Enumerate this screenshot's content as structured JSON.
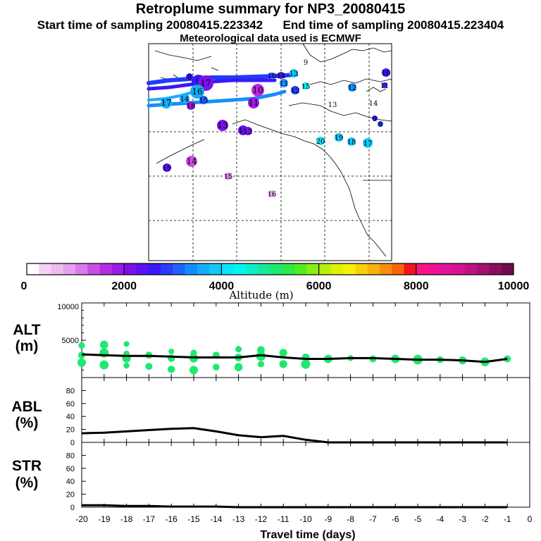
{
  "header": {
    "title": "Retroplume summary for NP3_20080415",
    "start": "Start time of sampling 20080415.223342",
    "end": "End time of sampling 20080415.223404",
    "met": "Meteorological data used is ECMWF"
  },
  "colorbar": {
    "label": "Altitude (m)",
    "ticks": [
      "0",
      "2000",
      "4000",
      "6000",
      "8000",
      "10000"
    ],
    "colors": [
      "#ffffff",
      "#f6d2f6",
      "#eebcf0",
      "#e3a3ec",
      "#d77ce8",
      "#c94ee4",
      "#b82ae4",
      "#9b1ae6",
      "#7c10ea",
      "#5a12ef",
      "#3a18f6",
      "#2a3cfa",
      "#1e62fb",
      "#178cfb",
      "#14acfa",
      "#10c8fa",
      "#0ee2f8",
      "#00f6f0",
      "#10eec8",
      "#18e89c",
      "#1ee870",
      "#2ce848",
      "#52ea20",
      "#88ec12",
      "#b6ee10",
      "#dcf00c",
      "#f8f00a",
      "#f8d00a",
      "#f8b00a",
      "#f88c0c",
      "#f8640c",
      "#f4141c",
      "#f81482",
      "#ee1292",
      "#e2129a",
      "#d2148e",
      "#c0127e",
      "#a4106e",
      "#8a0e60",
      "#6e0c50"
    ]
  },
  "map_labels": [
    {
      "t": "8",
      "c": "#3a18f6"
    },
    {
      "t": "9",
      "c": "#3a18f6"
    },
    {
      "t": "10",
      "c": "#2a3cfa"
    },
    {
      "t": "11",
      "c": "#178cfb"
    },
    {
      "t": "12",
      "c": "#2a3cfa"
    },
    {
      "t": "13",
      "c": "#10c8fa"
    },
    {
      "t": "14",
      "c": "#3a18f6"
    },
    {
      "t": "15",
      "c": "#0ee2f8"
    },
    {
      "t": "9",
      "c": "#3a18f6"
    },
    {
      "t": "8",
      "c": "#2a3cfa"
    },
    {
      "t": "16",
      "c": "#5a12ef"
    },
    {
      "t": "17",
      "c": "#10c8fa"
    },
    {
      "t": "18",
      "c": "#10c8fa"
    },
    {
      "t": "19",
      "c": "#10c8fa"
    },
    {
      "t": "20",
      "c": "#0ee2f8"
    },
    {
      "t": "13",
      "c": "#7c10ea"
    },
    {
      "t": "12",
      "c": "#7c10ea"
    },
    {
      "t": "11",
      "c": "#9b1ae6"
    },
    {
      "t": "10",
      "c": "#b82ae4"
    },
    {
      "t": "14",
      "c": "#c94ee4"
    },
    {
      "t": "15",
      "c": "#d77ce8"
    },
    {
      "t": "16",
      "c": "#e3a3ec"
    },
    {
      "t": "17",
      "c": "#7c10ea"
    },
    {
      "t": "18",
      "c": "#9b1ae6"
    },
    {
      "t": "19",
      "c": "#5a12ef"
    },
    {
      "t": "16",
      "c": "#14acfa"
    },
    {
      "t": "17",
      "c": "#14acfa"
    },
    {
      "t": "14",
      "c": "#14acfa"
    },
    {
      "t": "15",
      "c": "#1e62fb"
    },
    {
      "t": "12",
      "c": "#178cfb"
    },
    {
      "t": "9",
      "c": "#ffffff"
    },
    {
      "t": "10",
      "c": "#3a18f6"
    },
    {
      "t": "11",
      "c": "#3a18f6"
    },
    {
      "t": "14",
      "c": "#ffffff"
    },
    {
      "t": "13",
      "c": "#ffffff"
    }
  ],
  "chart_data": [
    {
      "type": "scatter",
      "panel": "ALT",
      "ylabel_1": "ALT",
      "ylabel_2": "(m)",
      "ylim": [
        0,
        10000
      ],
      "ytick_labels": [
        "10000",
        "5000"
      ],
      "xlim": [
        -20,
        0
      ],
      "median_line": {
        "x": [
          -20,
          -19,
          -18,
          -17,
          -16,
          -15,
          -14,
          -13,
          -12,
          -11,
          -10,
          -9,
          -8,
          -7,
          -6,
          -5,
          -4,
          -3,
          -2,
          -1
        ],
        "y": [
          3100,
          3000,
          2900,
          2900,
          2800,
          2700,
          2700,
          2700,
          3000,
          2700,
          2500,
          2500,
          2600,
          2600,
          2500,
          2400,
          2400,
          2300,
          2100,
          2500
        ]
      },
      "points": [
        {
          "x": -20,
          "y": 3000
        },
        {
          "x": -20,
          "y": 4300
        },
        {
          "x": -20,
          "y": 2000
        },
        {
          "x": -19,
          "y": 4400
        },
        {
          "x": -19,
          "y": 3300
        },
        {
          "x": -19,
          "y": 1700
        },
        {
          "x": -18,
          "y": 4500
        },
        {
          "x": -18,
          "y": 3200
        },
        {
          "x": -18,
          "y": 2600
        },
        {
          "x": -18,
          "y": 1600
        },
        {
          "x": -17,
          "y": 3000
        },
        {
          "x": -17,
          "y": 1500
        },
        {
          "x": -16,
          "y": 3500
        },
        {
          "x": -16,
          "y": 2600
        },
        {
          "x": -16,
          "y": 1100
        },
        {
          "x": -15,
          "y": 3300
        },
        {
          "x": -15,
          "y": 2600
        },
        {
          "x": -15,
          "y": 1000
        },
        {
          "x": -14,
          "y": 3000
        },
        {
          "x": -14,
          "y": 1400
        },
        {
          "x": -13,
          "y": 3800
        },
        {
          "x": -13,
          "y": 2700
        },
        {
          "x": -13,
          "y": 1400
        },
        {
          "x": -12,
          "y": 3700
        },
        {
          "x": -12,
          "y": 2900
        },
        {
          "x": -12,
          "y": 1800
        },
        {
          "x": -11,
          "y": 3300
        },
        {
          "x": -11,
          "y": 1800
        },
        {
          "x": -10,
          "y": 2700
        },
        {
          "x": -10,
          "y": 1800
        },
        {
          "x": -9,
          "y": 2500
        },
        {
          "x": -8,
          "y": 2600
        },
        {
          "x": -7,
          "y": 2500
        },
        {
          "x": -6,
          "y": 2500
        },
        {
          "x": -5,
          "y": 2400
        },
        {
          "x": -4,
          "y": 2400
        },
        {
          "x": -3,
          "y": 2300
        },
        {
          "x": -2,
          "y": 2100
        },
        {
          "x": -1,
          "y": 2500
        }
      ]
    },
    {
      "type": "line",
      "panel": "ABL",
      "ylabel_1": "ABL",
      "ylabel_2": "(%)",
      "ylim": [
        0,
        100
      ],
      "ytick_labels": [
        "0",
        "20",
        "40",
        "60",
        "80"
      ],
      "x": [
        -20,
        -19,
        -18,
        -17,
        -16,
        -15,
        -14,
        -13,
        -12,
        -11,
        -10,
        -9,
        -8,
        -7,
        -6,
        -5,
        -4,
        -3,
        -2,
        -1
      ],
      "y": [
        14,
        15,
        17,
        19,
        21,
        22,
        17,
        11,
        8,
        10,
        4,
        0,
        0,
        0,
        0,
        0,
        0,
        0,
        0,
        0
      ]
    },
    {
      "type": "line",
      "panel": "STR",
      "ylabel_1": "STR",
      "ylabel_2": "(%)",
      "ylim": [
        0,
        100
      ],
      "ytick_labels": [
        "0",
        "20",
        "40",
        "60",
        "80"
      ],
      "xlabel": "Travel time (days)",
      "xtick_labels": [
        "-20",
        "-19",
        "-18",
        "-17",
        "-16",
        "-15",
        "-14",
        "-13",
        "-12",
        "-11",
        "-10",
        "-9",
        "-8",
        "-7",
        "-6",
        "-5",
        "-4",
        "-3",
        "-2",
        "-1",
        "0"
      ],
      "x": [
        -20,
        -19,
        -18,
        -17,
        -16,
        -15,
        -14,
        -13,
        -12,
        -11,
        -10,
        -9,
        -8,
        -7,
        -6,
        -5,
        -4,
        -3,
        -2,
        -1
      ],
      "y": [
        3,
        3,
        2,
        2,
        1,
        1,
        1,
        0,
        0,
        0,
        0,
        0,
        0,
        0,
        0,
        0,
        0,
        0,
        0,
        0
      ]
    }
  ]
}
